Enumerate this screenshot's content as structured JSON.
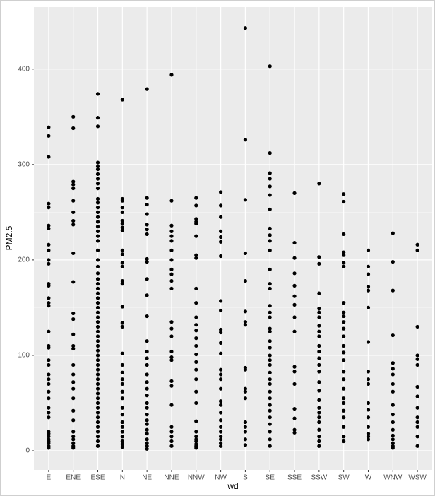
{
  "chart_data": {
    "type": "strip",
    "x_label": "wd",
    "y_label": "PM2.5",
    "categories": [
      "E",
      "ENE",
      "ESE",
      "N",
      "NE",
      "NNE",
      "NNW",
      "NW",
      "S",
      "SE",
      "SSE",
      "SSW",
      "SW",
      "W",
      "WNW",
      "WSW"
    ],
    "values": [
      [
        339,
        330,
        308,
        259,
        255,
        236,
        233,
        216,
        210,
        200,
        196,
        175,
        173,
        160,
        155,
        152,
        125,
        110,
        108,
        95,
        90,
        80,
        75,
        70,
        62,
        55,
        45,
        40,
        35,
        20,
        18,
        15,
        12,
        10,
        8,
        5,
        3
      ],
      [
        350,
        338,
        282,
        279,
        275,
        262,
        250,
        241,
        237,
        207,
        177,
        144,
        138,
        122,
        110,
        107,
        90,
        80,
        72,
        65,
        55,
        42,
        32,
        20,
        15,
        12,
        8,
        5,
        3
      ],
      [
        374,
        349,
        340,
        302,
        298,
        295,
        290,
        285,
        280,
        275,
        264,
        260,
        255,
        250,
        245,
        240,
        235,
        230,
        225,
        220,
        210,
        200,
        193,
        186,
        180,
        175,
        170,
        165,
        160,
        155,
        150,
        145,
        140,
        135,
        130,
        125,
        120,
        115,
        110,
        105,
        100,
        95,
        90,
        85,
        80,
        75,
        70,
        65,
        60,
        55,
        50,
        45,
        40,
        35,
        30,
        25,
        20,
        15,
        10,
        5
      ],
      [
        368,
        264,
        262,
        255,
        250,
        241,
        238,
        234,
        231,
        210,
        206,
        197,
        193,
        178,
        175,
        151,
        134,
        130,
        102,
        90,
        82,
        75,
        70,
        62,
        55,
        45,
        38,
        30,
        25,
        20,
        15,
        10,
        7,
        4
      ],
      [
        379,
        265,
        258,
        248,
        237,
        232,
        227,
        201,
        198,
        180,
        163,
        141,
        115,
        104,
        97,
        90,
        80,
        72,
        65,
        58,
        50,
        45,
        38,
        32,
        28,
        22,
        18,
        12,
        8,
        5,
        2
      ],
      [
        394,
        262,
        236,
        230,
        225,
        220,
        210,
        200,
        190,
        185,
        178,
        170,
        135,
        128,
        120,
        104,
        98,
        95,
        73,
        68,
        48,
        25,
        20,
        15,
        10,
        5
      ],
      [
        265,
        257,
        243,
        240,
        238,
        225,
        205,
        202,
        170,
        155,
        140,
        132,
        126,
        118,
        110,
        101,
        93,
        85,
        75,
        62,
        50,
        31,
        20,
        15,
        12,
        10,
        7,
        5,
        3
      ],
      [
        271,
        257,
        245,
        230,
        224,
        219,
        204,
        157,
        147,
        127,
        124,
        113,
        102,
        85,
        80,
        75,
        65,
        52,
        48,
        40,
        32,
        25,
        20,
        15,
        12,
        8,
        5
      ],
      [
        443,
        326,
        263,
        207,
        178,
        146,
        135,
        132,
        87,
        85,
        65,
        62,
        55,
        30,
        25,
        20,
        12,
        6
      ],
      [
        403,
        312,
        291,
        285,
        277,
        268,
        253,
        233,
        226,
        220,
        210,
        190,
        175,
        170,
        152,
        145,
        140,
        128,
        125,
        115,
        108,
        100,
        95,
        90,
        82,
        75,
        70,
        62,
        55,
        48,
        42,
        35,
        28,
        20,
        12,
        5
      ],
      [
        270,
        218,
        202,
        186,
        173,
        162,
        153,
        140,
        125,
        88,
        83,
        70,
        44,
        34,
        22,
        19
      ],
      [
        280,
        203,
        196,
        165,
        149,
        145,
        140,
        131,
        125,
        120,
        110,
        104,
        97,
        90,
        83,
        72,
        63,
        53,
        45,
        40,
        35,
        30,
        22,
        15,
        10,
        5
      ],
      [
        269,
        261,
        227,
        208,
        205,
        197,
        193,
        155,
        145,
        141,
        135,
        128,
        120,
        110,
        103,
        95,
        83,
        75,
        65,
        55,
        50,
        42,
        35,
        25,
        15,
        10
      ],
      [
        210,
        193,
        185,
        172,
        168,
        150,
        114,
        83,
        75,
        70,
        50,
        43,
        35,
        25,
        18,
        15,
        12
      ],
      [
        228,
        198,
        168,
        121,
        92,
        86,
        80,
        70,
        62,
        48,
        38,
        30,
        22,
        16,
        12,
        8,
        5,
        3
      ],
      [
        216,
        210,
        130,
        100,
        96,
        90,
        67,
        57,
        45,
        35,
        30,
        25,
        15,
        5
      ]
    ],
    "color": "#000000",
    "ylim": [
      -20,
      465
    ],
    "yticks": [
      0,
      100,
      200,
      300,
      400
    ],
    "y_minor_ticks": [
      50,
      150,
      250,
      350
    ],
    "grid": true
  }
}
